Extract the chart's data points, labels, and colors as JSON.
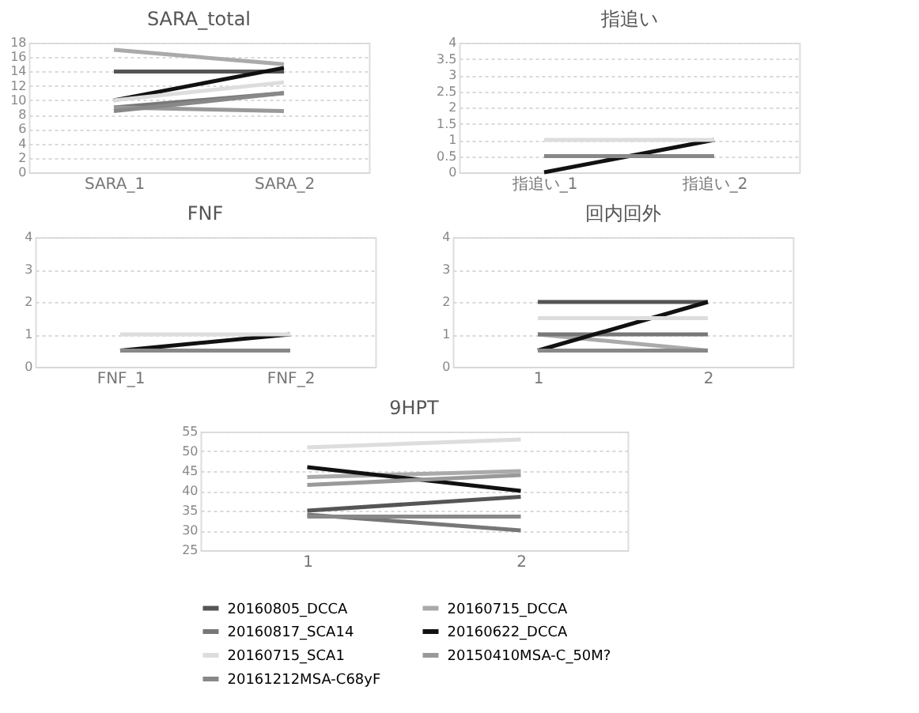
{
  "chart_data": [
    {
      "type": "line",
      "title": "SARA_total",
      "categories": [
        "SARA_1",
        "SARA_2"
      ],
      "ylim": [
        0,
        18
      ],
      "yticks": [
        0,
        2,
        4,
        6,
        8,
        10,
        12,
        14,
        16,
        18
      ],
      "grid": "y",
      "legend": false,
      "line_style": "solid",
      "marker": "none",
      "series": [
        {
          "color": "#555555",
          "values": [
            14,
            14
          ]
        },
        {
          "color": "#aaaaaa",
          "values": [
            17,
            15
          ]
        },
        {
          "color": "#777777",
          "values": [
            9,
            11
          ]
        },
        {
          "color": "#111111",
          "values": [
            10,
            14.5
          ]
        },
        {
          "color": "#dddddd",
          "values": [
            10,
            12.5
          ]
        },
        {
          "color": "#999999",
          "values": [
            9,
            8.5
          ]
        },
        {
          "color": "#888888",
          "values": [
            8.5,
            11
          ]
        }
      ]
    },
    {
      "type": "line",
      "title": "指追い",
      "categories": [
        "指追い_1",
        "指追い_2"
      ],
      "ylim": [
        0,
        4
      ],
      "yticks": [
        0,
        0.5,
        1,
        1.5,
        2,
        2.5,
        3,
        3.5,
        4
      ],
      "grid": "y",
      "legend": false,
      "line_style": "solid",
      "marker": "none",
      "series": [
        {
          "color": "#555555",
          "values": [
            null,
            null
          ]
        },
        {
          "color": "#aaaaaa",
          "values": [
            null,
            null
          ]
        },
        {
          "color": "#777777",
          "values": [
            null,
            null
          ]
        },
        {
          "color": "#111111",
          "values": [
            0,
            1
          ]
        },
        {
          "color": "#dddddd",
          "values": [
            1,
            1
          ]
        },
        {
          "color": "#999999",
          "values": [
            null,
            null
          ]
        },
        {
          "color": "#888888",
          "values": [
            0.5,
            0.5
          ]
        }
      ]
    },
    {
      "type": "line",
      "title": "FNF",
      "categories": [
        "FNF_1",
        "FNF_2"
      ],
      "ylim": [
        0,
        4
      ],
      "yticks": [
        0,
        1,
        2,
        3,
        4
      ],
      "grid": "y",
      "legend": false,
      "line_style": "solid",
      "marker": "none",
      "series": [
        {
          "color": "#555555",
          "values": [
            null,
            null
          ]
        },
        {
          "color": "#aaaaaa",
          "values": [
            null,
            null
          ]
        },
        {
          "color": "#777777",
          "values": [
            null,
            null
          ]
        },
        {
          "color": "#111111",
          "values": [
            0.5,
            1
          ]
        },
        {
          "color": "#dddddd",
          "values": [
            1,
            1
          ]
        },
        {
          "color": "#999999",
          "values": [
            null,
            null
          ]
        },
        {
          "color": "#888888",
          "values": [
            0.5,
            0.5
          ]
        }
      ]
    },
    {
      "type": "line",
      "title": "回内回外",
      "categories": [
        "1",
        "2"
      ],
      "ylim": [
        0,
        4
      ],
      "yticks": [
        0,
        1,
        2,
        3,
        4
      ],
      "grid": "y",
      "legend": false,
      "line_style": "solid",
      "marker": "none",
      "series": [
        {
          "color": "#555555",
          "values": [
            2,
            2
          ]
        },
        {
          "color": "#aaaaaa",
          "values": [
            1,
            0.5
          ]
        },
        {
          "color": "#777777",
          "values": [
            1,
            1
          ]
        },
        {
          "color": "#111111",
          "values": [
            0.5,
            2
          ]
        },
        {
          "color": "#dddddd",
          "values": [
            1.5,
            1.5
          ]
        },
        {
          "color": "#999999",
          "values": [
            null,
            null
          ]
        },
        {
          "color": "#888888",
          "values": [
            0.5,
            0.5
          ]
        }
      ]
    },
    {
      "type": "line",
      "title": "9HPT",
      "categories": [
        "1",
        "2"
      ],
      "ylim": [
        25,
        55
      ],
      "yticks": [
        25,
        30,
        35,
        40,
        45,
        50,
        55
      ],
      "grid": "y",
      "legend": "bottom",
      "line_style": "solid",
      "marker": "none",
      "series": [
        {
          "name": "20160805_DCCA",
          "color": "#555555",
          "values": [
            35,
            38.5
          ]
        },
        {
          "name": "20160715_DCCA",
          "color": "#aaaaaa",
          "values": [
            43.5,
            45
          ]
        },
        {
          "name": "20160817_SCA14",
          "color": "#777777",
          "values": [
            34,
            30
          ]
        },
        {
          "name": "20160622_DCCA",
          "color": "#111111",
          "values": [
            46,
            40
          ]
        },
        {
          "name": "20160715_SCA1",
          "color": "#dddddd",
          "values": [
            51,
            53
          ]
        },
        {
          "name": "20150410MSA-C_50M?",
          "color": "#999999",
          "values": [
            41.5,
            44
          ]
        },
        {
          "name": "20161212MSA-C68yF",
          "color": "#888888",
          "values": [
            33.5,
            33.5
          ]
        }
      ]
    }
  ]
}
